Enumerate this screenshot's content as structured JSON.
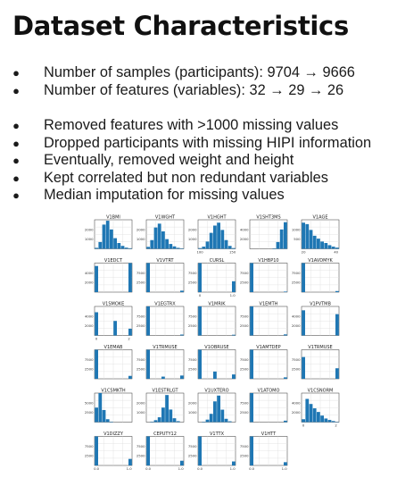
{
  "slide": {
    "title": "Dataset Characteristics",
    "bullets_group1": [
      "Number of samples (participants): 9704 → 9666",
      "Number of features (variables): 32 → 29 → 26"
    ],
    "bullets_group2": [
      "Removed features with >1000 missing values",
      "Dropped participants with missing HIPI information",
      "Eventually, removed weight and height",
      "Kept correlated but non redundant variables",
      "Median imputation for missing values"
    ],
    "bullet_symbol": "●"
  },
  "chart_data": {
    "type": "bar",
    "subtype": "histogram-grid",
    "bar_color": "#1f77b4",
    "grid": true,
    "panels": [
      {
        "title": "V1BMI",
        "values": [
          100,
          700,
          2500,
          2900,
          2000,
          1100,
          600,
          300,
          120,
          60
        ],
        "ymax": 3000,
        "yticks": [
          "1000",
          "2000"
        ],
        "xticks": [
          "",
          ""
        ]
      },
      {
        "title": "V1WGHT",
        "values": [
          200,
          900,
          2200,
          2600,
          1800,
          1000,
          500,
          250,
          100,
          50
        ],
        "ymax": 3000,
        "yticks": [
          "1000",
          "2000"
        ],
        "xticks": [
          "",
          ""
        ]
      },
      {
        "title": "V1HGHT",
        "values": [
          50,
          150,
          500,
          1100,
          1600,
          1800,
          1300,
          600,
          200,
          50
        ],
        "ymax": 2000,
        "yticks": [
          "1000",
          "2000"
        ],
        "xticks": [
          "100",
          "150"
        ]
      },
      {
        "title": "V1SHT3MS",
        "values": [
          0,
          0,
          0,
          0,
          0,
          0,
          100,
          1400,
          4000,
          5500
        ],
        "ymax": 6000,
        "yticks": [
          "2000",
          "4000"
        ],
        "xticks": [
          "",
          ""
        ]
      },
      {
        "title": "V1AGE",
        "values": [
          1800,
          1700,
          1300,
          900,
          700,
          500,
          400,
          250,
          150,
          80
        ],
        "ymax": 2000,
        "yticks": [
          "500",
          "1000"
        ],
        "xticks": [
          "20",
          "40"
        ]
      },
      {
        "title": "V1EDCT",
        "values": [
          4500,
          0,
          0,
          0,
          0,
          0,
          0,
          0,
          0,
          5000
        ],
        "ymax": 5000,
        "yticks": [
          "2000",
          "4000"
        ],
        "xticks": [
          "",
          ""
        ]
      },
      {
        "title": "V1VTRT",
        "values": [
          8500,
          0,
          0,
          0,
          0,
          0,
          0,
          0,
          0,
          400
        ],
        "ymax": 8000,
        "yticks": [
          "2500",
          "7500"
        ],
        "xticks": [
          "",
          ""
        ]
      },
      {
        "title": "CURSL",
        "values": [
          9000,
          0,
          0,
          0,
          0,
          0,
          0,
          0,
          0,
          3000
        ],
        "ymax": 8000,
        "yticks": [
          "2500",
          "7500"
        ],
        "xticks": [
          "0",
          "1.0"
        ]
      },
      {
        "title": "V1HBP10",
        "values": [
          9000,
          0,
          0,
          0,
          0,
          0,
          0,
          0,
          0,
          150
        ],
        "ymax": 8000,
        "yticks": [
          "2500",
          "7500"
        ],
        "xticks": [
          "",
          ""
        ]
      },
      {
        "title": "V1AVDMYK",
        "values": [
          8800,
          0,
          0,
          0,
          0,
          0,
          0,
          0,
          0,
          300
        ],
        "ymax": 8000,
        "yticks": [
          "2500",
          "7500"
        ],
        "xticks": [
          "",
          ""
        ]
      },
      {
        "title": "V1SMOKE",
        "values": [
          4800,
          0,
          0,
          0,
          0,
          3000,
          0,
          0,
          0,
          1400
        ],
        "ymax": 6000,
        "yticks": [
          "2000",
          "4000"
        ],
        "xticks": [
          "0",
          "2"
        ]
      },
      {
        "title": "V1EGTRX",
        "values": [
          8900,
          0,
          0,
          0,
          0,
          0,
          0,
          0,
          0,
          250
        ],
        "ymax": 8000,
        "yticks": [
          "2500",
          "7500"
        ],
        "xticks": [
          "",
          ""
        ]
      },
      {
        "title": "V1MRIK",
        "values": [
          8800,
          0,
          0,
          0,
          0,
          0,
          0,
          0,
          0,
          200
        ],
        "ymax": 8000,
        "yticks": [
          "2500",
          "7500"
        ],
        "xticks": [
          "",
          ""
        ]
      },
      {
        "title": "V1EMTH",
        "values": [
          8800,
          0,
          0,
          0,
          0,
          0,
          0,
          0,
          0,
          300
        ],
        "ymax": 8000,
        "yticks": [
          "2500",
          "7500"
        ],
        "xticks": [
          "",
          ""
        ]
      },
      {
        "title": "V1PVTMB",
        "values": [
          5200,
          0,
          0,
          0,
          0,
          0,
          0,
          0,
          0,
          4400
        ],
        "ymax": 6000,
        "yticks": [
          "2000",
          "4000"
        ],
        "xticks": [
          "",
          ""
        ]
      },
      {
        "title": "V1EMAB",
        "values": [
          8800,
          0,
          0,
          0,
          0,
          0,
          0,
          0,
          0,
          800
        ],
        "ymax": 8000,
        "yticks": [
          "2500",
          "7500"
        ],
        "xticks": [
          "",
          ""
        ]
      },
      {
        "title": "V1TRMUSE",
        "values": [
          8500,
          0,
          0,
          0,
          600,
          0,
          0,
          0,
          0,
          900
        ],
        "ymax": 8000,
        "yticks": [
          "2500",
          "7500"
        ],
        "xticks": [
          "",
          ""
        ]
      },
      {
        "title": "V1OBRUSE",
        "values": [
          9000,
          0,
          0,
          0,
          2000,
          0,
          0,
          0,
          0,
          1200
        ],
        "ymax": 8000,
        "yticks": [
          "2500",
          "7500"
        ],
        "xticks": [
          "",
          ""
        ]
      },
      {
        "title": "V1AMTDEP",
        "values": [
          9000,
          0,
          0,
          0,
          0,
          0,
          0,
          0,
          0,
          400
        ],
        "ymax": 8000,
        "yticks": [
          "2500",
          "7500"
        ],
        "xticks": [
          "",
          ""
        ]
      },
      {
        "title": "V1TRMUSE",
        "values": [
          6000,
          0,
          0,
          0,
          0,
          0,
          0,
          0,
          0,
          2900
        ],
        "ymax": 8000,
        "yticks": [
          "2500",
          "7500"
        ],
        "xticks": [
          "",
          ""
        ]
      },
      {
        "title": "V1CSMKTH",
        "values": [
          3000,
          6200,
          2500,
          600,
          100,
          0,
          0,
          0,
          0,
          0
        ],
        "ymax": 6000,
        "yticks": [
          "2500",
          "5000"
        ],
        "xticks": [
          "",
          ""
        ]
      },
      {
        "title": "V1ESTRLGT",
        "values": [
          0,
          50,
          200,
          500,
          1500,
          2800,
          1300,
          400,
          100,
          0
        ],
        "ymax": 3000,
        "yticks": [
          "1000",
          "2000"
        ],
        "xticks": [
          "",
          ""
        ]
      },
      {
        "title": "V1UXTERO",
        "values": [
          0,
          50,
          300,
          1000,
          2500,
          3200,
          1500,
          400,
          100,
          0
        ],
        "ymax": 3500,
        "yticks": [
          "1000",
          "2000"
        ],
        "xticks": [
          "",
          ""
        ]
      },
      {
        "title": "V1ATOMO",
        "values": [
          8800,
          0,
          0,
          0,
          0,
          0,
          0,
          0,
          0,
          400
        ],
        "ymax": 8000,
        "yticks": [
          "2500",
          "7500"
        ],
        "xticks": [
          "",
          ""
        ]
      },
      {
        "title": "V1CSNORM",
        "values": [
          400,
          3200,
          2500,
          1900,
          1400,
          900,
          500,
          300,
          150,
          50
        ],
        "ymax": 4000,
        "yticks": [
          "2000",
          "4000"
        ],
        "xticks": [
          "0",
          "2"
        ]
      },
      {
        "title": "V1DIZZY",
        "values": [
          8800,
          0,
          0,
          0,
          0,
          0,
          0,
          0,
          0,
          1800
        ],
        "ymax": 8000,
        "yticks": [
          "2500",
          "7500"
        ],
        "xticks": [
          "0.0",
          "1.0"
        ]
      },
      {
        "title": "CEPUTY12",
        "values": [
          8000,
          0,
          0,
          0,
          0,
          0,
          0,
          0,
          0,
          1300
        ],
        "ymax": 8000,
        "yticks": [
          "2500",
          "7500"
        ],
        "xticks": [
          "0.0",
          "1.0"
        ]
      },
      {
        "title": "V1TTX",
        "values": [
          8800,
          0,
          0,
          0,
          0,
          0,
          0,
          0,
          0,
          1100
        ],
        "ymax": 8000,
        "yticks": [
          "2500",
          "7500"
        ],
        "xticks": [
          "0.0",
          "1.0"
        ]
      },
      {
        "title": "V1HTT",
        "values": [
          8800,
          0,
          0,
          0,
          0,
          0,
          0,
          0,
          0,
          900
        ],
        "ymax": 8000,
        "yticks": [
          "2500",
          "7500"
        ],
        "xticks": [
          "0.0",
          "1.0"
        ]
      }
    ]
  }
}
